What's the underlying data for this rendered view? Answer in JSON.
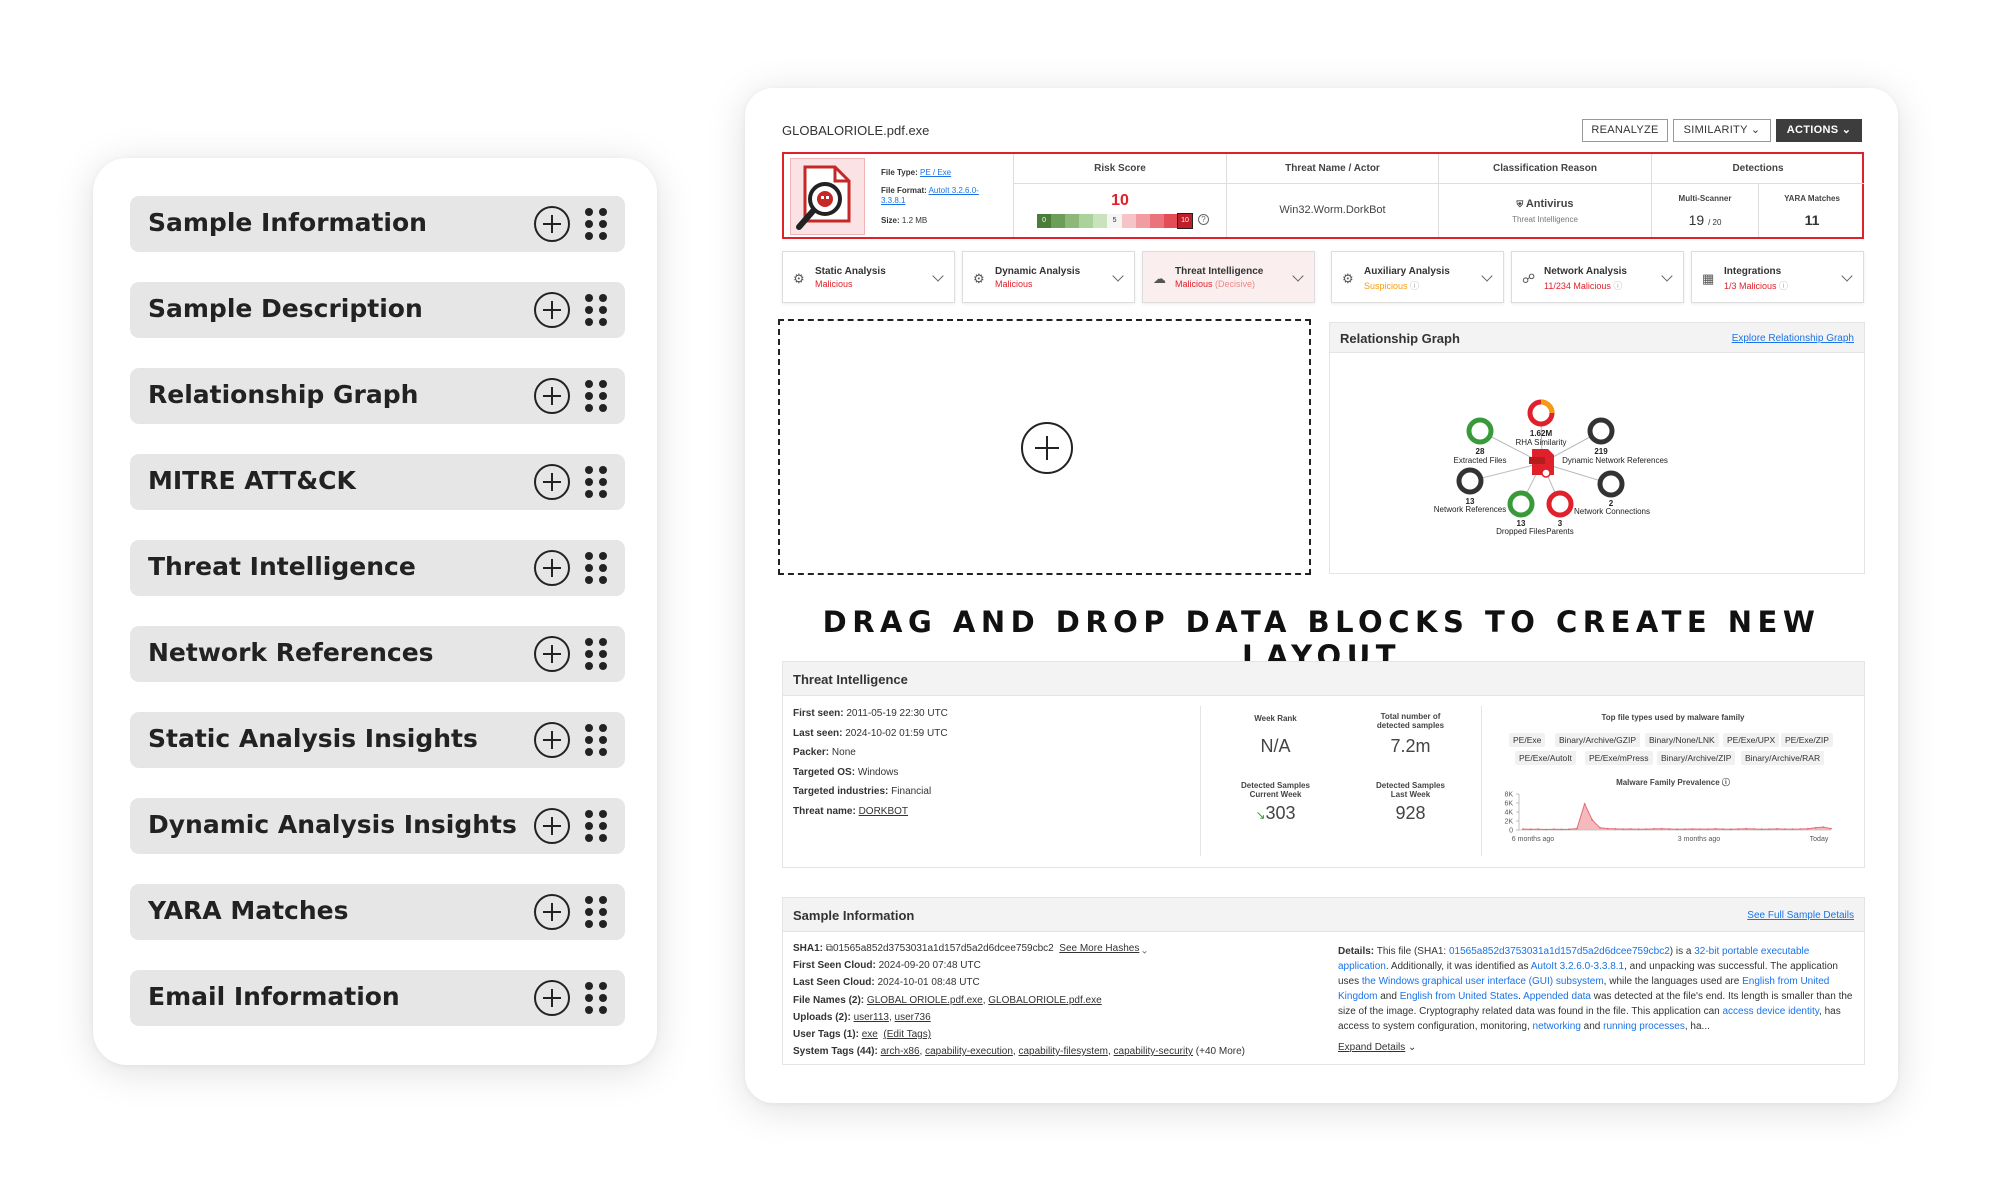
{
  "palette": {
    "items": [
      {
        "label": "Sample Information"
      },
      {
        "label": "Sample Description"
      },
      {
        "label": "Relationship Graph"
      },
      {
        "label": "MITRE ATT&CK"
      },
      {
        "label": "Threat Intelligence"
      },
      {
        "label": "Network References"
      },
      {
        "label": "Static Analysis Insights"
      },
      {
        "label": "Dynamic Analysis Insights"
      },
      {
        "label": "YARA Matches"
      },
      {
        "label": "Email Information"
      }
    ]
  },
  "report": {
    "filename": "GLOBALORIOLE.pdf.exe",
    "toolbar": {
      "reanalyze": "REANALYZE",
      "similarity": "SIMILARITY",
      "actions": "ACTIONS"
    },
    "file": {
      "type_label": "File Type:",
      "type_value": "PE / Exe",
      "format_label": "File Format:",
      "format_value": "AutoIt 3.2.6.0-3.3.8.1",
      "size_label": "Size:",
      "size_value": "1.2 MB"
    },
    "summary": {
      "risk_header": "Risk Score",
      "risk_value": "10",
      "risk_scale": [
        "0",
        "5",
        "10"
      ],
      "threat_header": "Threat Name / Actor",
      "threat_value": "Win32.Worm.DorkBot",
      "class_header": "Classification Reason",
      "class_value": "Antivirus",
      "class_sub": "Threat Intelligence",
      "detections_header": "Detections",
      "multiscanner_label": "Multi-Scanner",
      "multiscanner_value": "19",
      "multiscanner_total": "/ 20",
      "yara_label": "YARA Matches",
      "yara_value": "11"
    },
    "tabs": [
      {
        "title": "Static Analysis",
        "status": "Malicious",
        "color": "#e0202a",
        "icon": "gear-scan-icon"
      },
      {
        "title": "Dynamic Analysis",
        "status": "Malicious",
        "color": "#e0202a",
        "icon": "gear-run-icon"
      },
      {
        "title": "Threat Intelligence",
        "status": "Malicious",
        "status_extra": "(Decisive)",
        "color": "#e0202a",
        "icon": "cloud-icon"
      },
      {
        "title": "Auxiliary Analysis",
        "status": "Suspicious",
        "color": "#f39c12",
        "icon": "gear-aux-icon"
      },
      {
        "title": "Network Analysis",
        "status": "11/234 Malicious",
        "color": "#e0202a",
        "icon": "network-icon"
      },
      {
        "title": "Integrations",
        "status": "1/3 Malicious",
        "color": "#e0202a",
        "icon": "integration-icon"
      }
    ],
    "relationship": {
      "title": "Relationship Graph",
      "link": "Explore Relationship Graph",
      "nodes": [
        {
          "count": "28",
          "label": "Extracted Files",
          "color": "#3a9a3a"
        },
        {
          "count": "1.62M",
          "label": "RHA Similarity",
          "color": "#e0202a"
        },
        {
          "count": "219",
          "label": "Dynamic Network References",
          "color": "#333333"
        },
        {
          "count": "13",
          "label": "Network References",
          "color": "#333333"
        },
        {
          "count": "2",
          "label": "Network Connections",
          "color": "#333333"
        },
        {
          "count": "13",
          "label": "Dropped Files",
          "color": "#3a9a3a"
        },
        {
          "count": "3",
          "label": "Parents",
          "color": "#e0202a"
        }
      ]
    },
    "cta": "DRAG AND DROP DATA BLOCKS TO CREATE NEW LAYOUT",
    "ti": {
      "title": "Threat Intelligence",
      "first_seen_label": "First seen:",
      "first_seen": "2011-05-19 22:30 UTC",
      "last_seen_label": "Last seen:",
      "last_seen": "2024-10-02 01:59 UTC",
      "packer_label": "Packer:",
      "packer": "None",
      "os_label": "Targeted OS:",
      "os": "Windows",
      "industries_label": "Targeted industries:",
      "industries": "Financial",
      "threat_label": "Threat name:",
      "threat": "DORKBOT",
      "week_rank_label": "Week Rank",
      "week_rank": "N/A",
      "total_label_1": "Total number of",
      "total_label_2": "detected samples",
      "total": "7.2m",
      "current_label_1": "Detected Samples",
      "current_label_2": "Current Week",
      "current": "303",
      "last_label_1": "Detected Samples",
      "last_label_2": "Last Week",
      "last": "928",
      "filetypes_title": "Top file types used by malware family",
      "filetypes_row1": [
        "PE/Exe",
        "Binary/Archive/GZIP",
        "Binary/None/LNK",
        "PE/Exe/UPX",
        "PE/Exe/ZIP"
      ],
      "filetypes_row2": [
        "PE/Exe/AutoIt",
        "PE/Exe/mPress",
        "Binary/Archive/ZIP",
        "Binary/Archive/RAR"
      ],
      "prevalence_title": "Malware Family Prevalence",
      "yticks": [
        "8K",
        "6K",
        "4K",
        "2K",
        "0"
      ],
      "xticks": [
        "6 months ago",
        "3 months ago",
        "Today"
      ]
    },
    "chart_data": {
      "type": "area",
      "title": "Malware Family Prevalence",
      "x": [
        0,
        1,
        2,
        3,
        4,
        5,
        6,
        7,
        8,
        9,
        10,
        11,
        12,
        13,
        14,
        15,
        16,
        17,
        18,
        19,
        20,
        21,
        22,
        23,
        24,
        25,
        26,
        27,
        28,
        29,
        30,
        31,
        32,
        33,
        34,
        35,
        36,
        37,
        38,
        39,
        40
      ],
      "values": [
        200,
        150,
        180,
        120,
        160,
        140,
        180,
        300,
        5800,
        2200,
        500,
        300,
        250,
        200,
        220,
        180,
        200,
        240,
        260,
        220,
        180,
        200,
        230,
        190,
        210,
        250,
        200,
        180,
        230,
        260,
        220,
        180,
        200,
        240,
        210,
        190,
        230,
        280,
        500,
        650,
        300
      ],
      "yticks": [
        "8K",
        "6K",
        "4K",
        "2K",
        "0"
      ],
      "ylim": [
        0,
        8000
      ],
      "xticks": [
        "6 months ago",
        "3 months ago",
        "Today"
      ],
      "color": "#e56b75"
    },
    "si": {
      "title": "Sample Information",
      "link": "See Full Sample Details",
      "sha1_label": "SHA1:",
      "sha1": "01565a852d3753031a1d157d5a2d6dcee759cbc2",
      "more_hashes": "See More Hashes",
      "first_cloud_label": "First Seen Cloud:",
      "first_cloud": "2024-09-20 07:48 UTC",
      "last_cloud_label": "Last Seen Cloud:",
      "last_cloud": "2024-10-01 08:48 UTC",
      "filenames_label": "File Names (2):",
      "filename1": "GLOBAL ORIOLE.pdf.exe",
      "filename2": "GLOBALORIOLE.pdf.exe",
      "uploads_label": "Uploads (2):",
      "upload1": "user113",
      "upload2": "user736",
      "usertags_label": "User Tags (1):",
      "usertag1": "exe",
      "edit_tags": "(Edit Tags)",
      "systags_label": "System Tags (44):",
      "systag1": "arch-x86",
      "systag2": "capability-execution",
      "systag3": "capability-filesystem",
      "systag4": "capability-security",
      "systags_more": "(+40 More)",
      "details_label": "Details:",
      "d1": "This file (SHA1: ",
      "d2": "01565a852d3753031a1d157d5a2d6dcee759cbc2",
      "d3": ") is a ",
      "d4": "32-bit portable executable application",
      "d5": ". Additionally, it was identified as ",
      "d6": "AutoIt 3.2.6.0-3.3.8.1",
      "d7": ", and unpacking was successful. The application uses ",
      "d8": "the Windows graphical user interface (GUI) subsystem",
      "d9": ", while the languages used are ",
      "d10": "English from United Kingdom",
      "d11": " and ",
      "d12": "English from United States",
      "d13": ". ",
      "d14": "Appended data",
      "d15": " was detected at the file's end. Its length is smaller than the size of the image. Cryptography related data was found in the file. This application can ",
      "d16": "access device identity",
      "d17": ", has access to system configuration, monitoring, ",
      "d18": "networking",
      "d19": " and ",
      "d20": "running processes",
      "d21": ", ha...",
      "expand": "Expand Details"
    }
  }
}
